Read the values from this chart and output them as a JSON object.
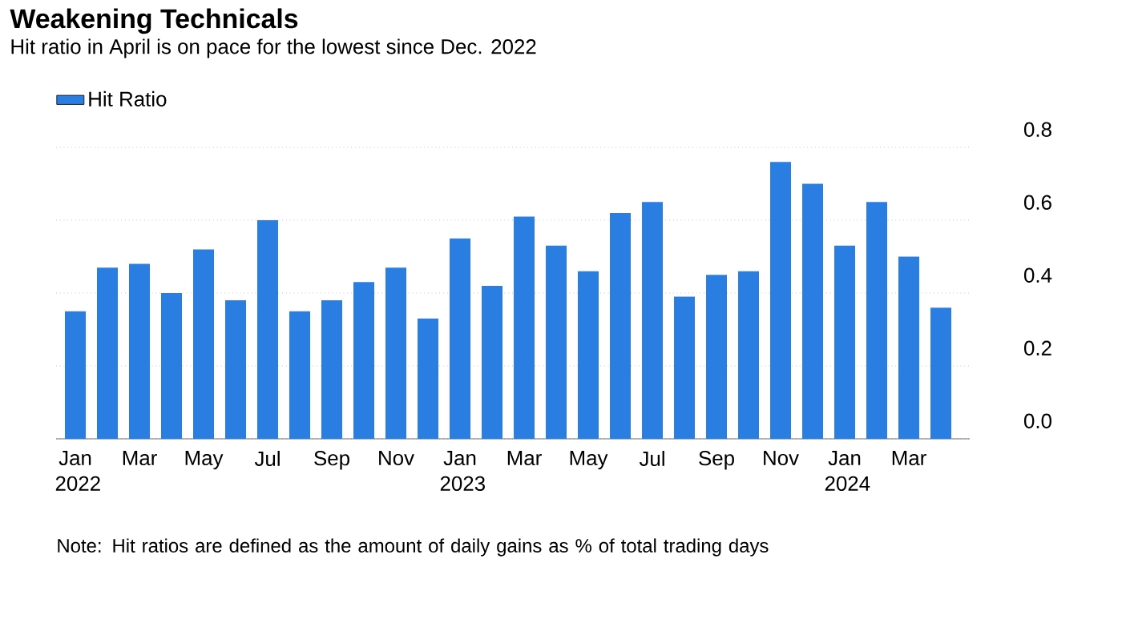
{
  "chart_data": {
    "type": "bar",
    "title": "Weakening Technicals",
    "subtitle": "Hit ratio in April is on pace for the lowest since Dec. 2022",
    "categories": [
      "Jan 2022",
      null,
      "Mar",
      null,
      "May",
      null,
      "Jul",
      null,
      "Sep",
      null,
      "Nov",
      null,
      "Jan 2023",
      null,
      "Mar",
      null,
      "May",
      null,
      "Jul",
      null,
      "Sep",
      null,
      "Nov",
      null,
      "Jan 2024",
      null,
      "Mar",
      null
    ],
    "series": [
      {
        "name": "Hit Ratio",
        "color": "#2a7de1",
        "values": [
          0.35,
          0.47,
          0.48,
          0.4,
          0.52,
          0.38,
          0.6,
          0.35,
          0.38,
          0.43,
          0.47,
          0.33,
          0.55,
          0.42,
          0.61,
          0.53,
          0.46,
          0.62,
          0.65,
          0.39,
          0.45,
          0.46,
          0.76,
          0.7,
          0.53,
          0.65,
          0.5,
          0.36
        ]
      }
    ],
    "ylim": [
      0,
      0.8
    ],
    "yticks": [
      {
        "value": 0,
        "label": "0.0"
      },
      0.2,
      0.4,
      0.6,
      0.8
    ],
    "grid": "y",
    "legend": "top left",
    "annotations": [
      "Note: Hit ratios are defined as the amount of daily gains as % of total trading days"
    ]
  }
}
